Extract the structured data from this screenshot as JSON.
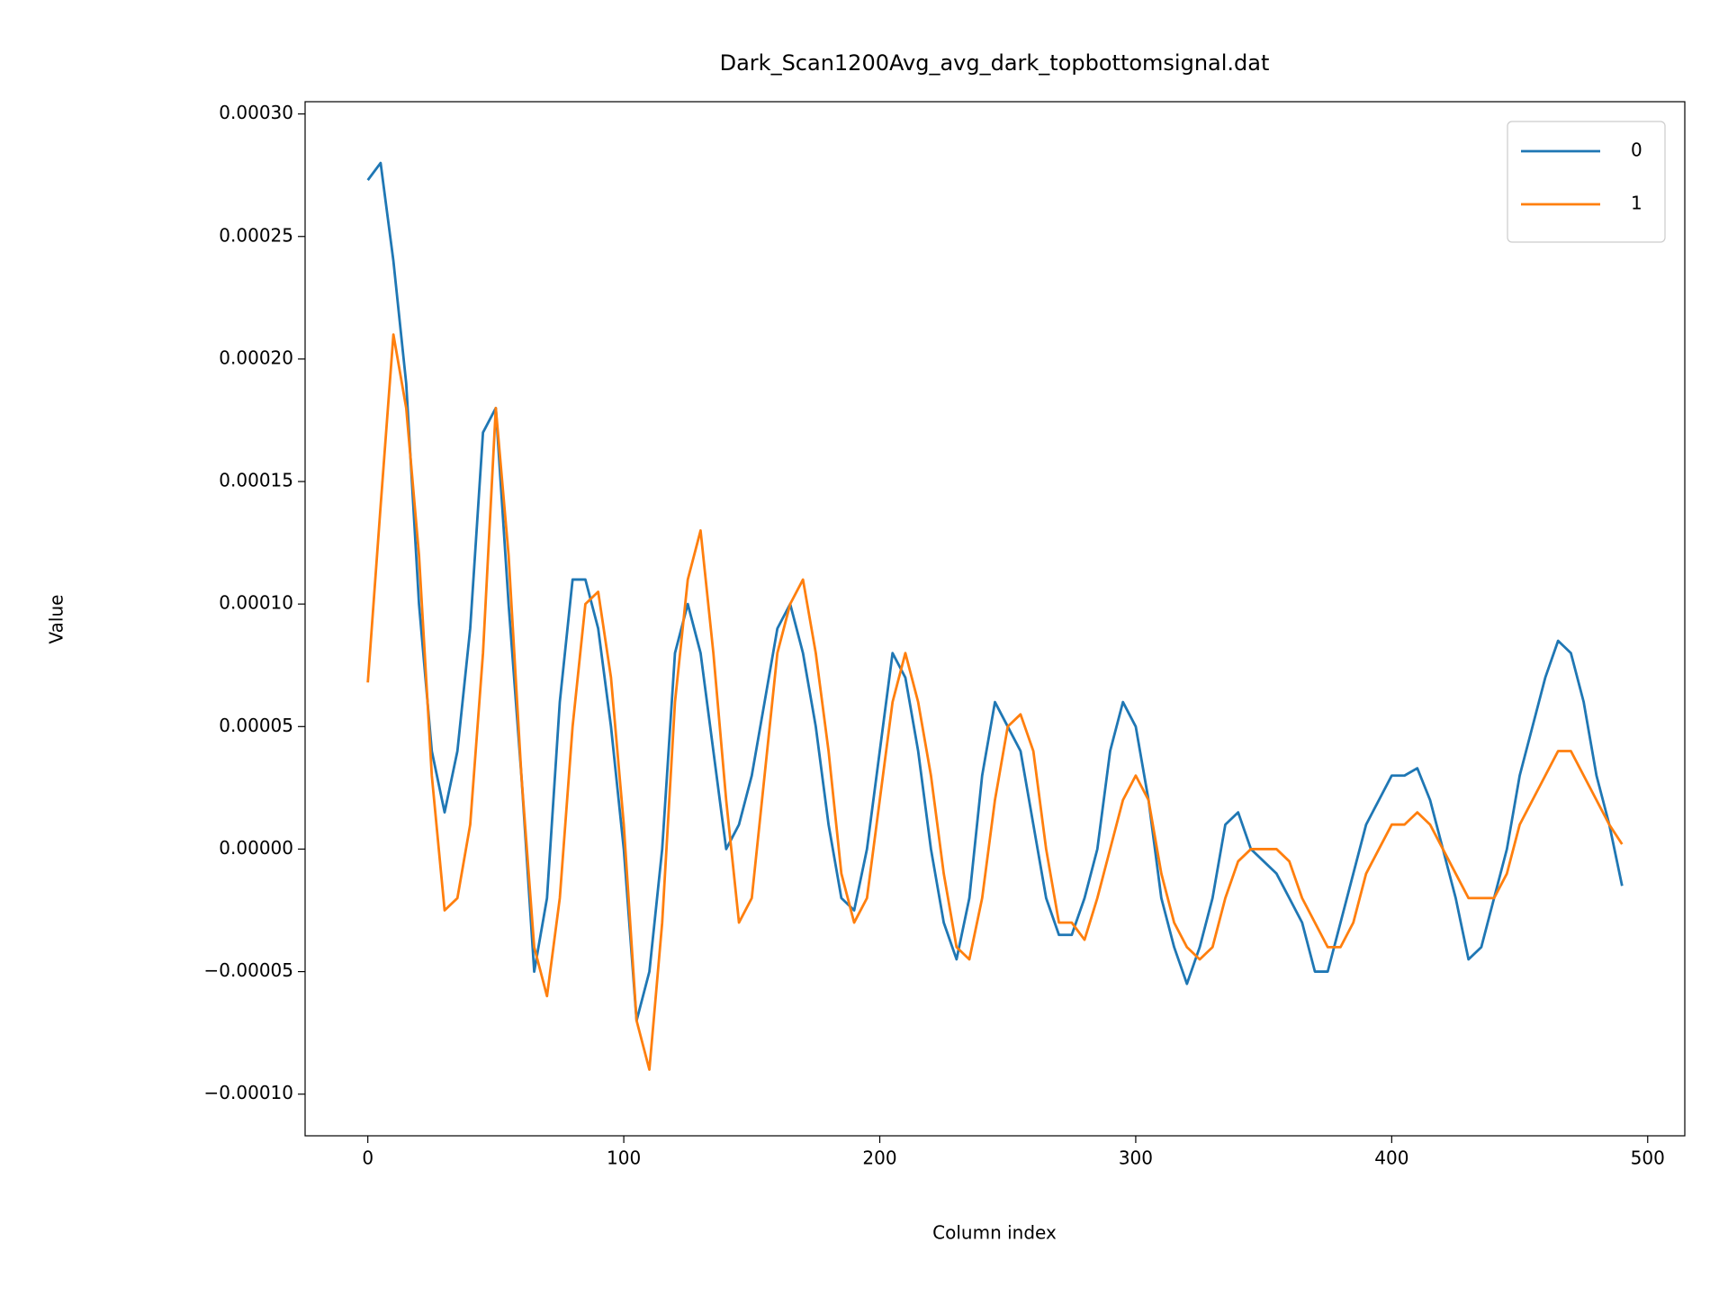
{
  "chart_data": {
    "type": "line",
    "title": "Dark_Scan1200Avg_avg_dark_topbottomsignal.dat",
    "xlabel": "Column index",
    "ylabel": "Value",
    "x": [
      0,
      5,
      10,
      15,
      20,
      25,
      30,
      35,
      40,
      45,
      50,
      55,
      60,
      65,
      70,
      75,
      80,
      85,
      90,
      95,
      100,
      105,
      110,
      115,
      120,
      125,
      130,
      135,
      140,
      145,
      150,
      155,
      160,
      165,
      170,
      175,
      180,
      185,
      190,
      195,
      200,
      205,
      210,
      215,
      220,
      225,
      230,
      235,
      240,
      245,
      250,
      255,
      260,
      265,
      270,
      275,
      280,
      285,
      290,
      295,
      300,
      305,
      310,
      315,
      320,
      325,
      330,
      335,
      340,
      345,
      350,
      355,
      360,
      365,
      370,
      375,
      380,
      385,
      390,
      395,
      400,
      405,
      410,
      415,
      420,
      425,
      430,
      435,
      440,
      445,
      450,
      455,
      460,
      465,
      470,
      475,
      480,
      485,
      490
    ],
    "series": [
      {
        "name": "0",
        "color": "#1f77b4",
        "values": [
          0.000273,
          0.00028,
          0.00024,
          0.00019,
          0.0001,
          4e-05,
          1.5e-05,
          4e-05,
          9e-05,
          0.00017,
          0.00018,
          0.0001,
          3e-05,
          -5e-05,
          -2e-05,
          6e-05,
          0.00011,
          0.00011,
          9e-05,
          5e-05,
          0,
          -7e-05,
          -5e-05,
          0,
          8e-05,
          0.0001,
          8e-05,
          4e-05,
          0,
          1e-05,
          3e-05,
          6e-05,
          9e-05,
          0.0001,
          8e-05,
          5e-05,
          1e-05,
          -2e-05,
          -2.5e-05,
          0,
          4e-05,
          8e-05,
          7e-05,
          4e-05,
          0,
          -3e-05,
          -4.5e-05,
          -2e-05,
          3e-05,
          6e-05,
          5e-05,
          4e-05,
          1e-05,
          -2e-05,
          -3.5e-05,
          -3.5e-05,
          -2e-05,
          0,
          4e-05,
          6e-05,
          5e-05,
          2e-05,
          -2e-05,
          -4e-05,
          -5.5e-05,
          -4e-05,
          -2e-05,
          1e-05,
          1.5e-05,
          0,
          -5e-06,
          -1e-05,
          -2e-05,
          -3e-05,
          -5e-05,
          -5e-05,
          -3e-05,
          -1e-05,
          1e-05,
          2e-05,
          3e-05,
          3e-05,
          3.3e-05,
          2e-05,
          0,
          -2e-05,
          -4.5e-05,
          -4e-05,
          -2e-05,
          0,
          3e-05,
          5e-05,
          7e-05,
          8.5e-05,
          8e-05,
          6e-05,
          3e-05,
          1e-05,
          -1.5e-05
        ]
      },
      {
        "name": "1",
        "color": "#ff7f0e",
        "values": [
          6.8e-05,
          0.00014,
          0.00021,
          0.00018,
          0.00012,
          3e-05,
          -2.5e-05,
          -2e-05,
          1e-05,
          8e-05,
          0.00018,
          0.00012,
          3e-05,
          -4e-05,
          -6e-05,
          -2e-05,
          5e-05,
          0.0001,
          0.000105,
          7e-05,
          1e-05,
          -7e-05,
          -9e-05,
          -3e-05,
          6e-05,
          0.00011,
          0.00013,
          8e-05,
          2e-05,
          -3e-05,
          -2e-05,
          3e-05,
          8e-05,
          0.0001,
          0.00011,
          8e-05,
          4e-05,
          -1e-05,
          -3e-05,
          -2e-05,
          2e-05,
          6e-05,
          8e-05,
          6e-05,
          3e-05,
          -1e-05,
          -4e-05,
          -4.5e-05,
          -2e-05,
          2e-05,
          5e-05,
          5.5e-05,
          4e-05,
          0,
          -3e-05,
          -3e-05,
          -3.7e-05,
          -2e-05,
          0,
          2e-05,
          3e-05,
          2e-05,
          -1e-05,
          -3e-05,
          -4e-05,
          -4.5e-05,
          -4e-05,
          -2e-05,
          -5e-06,
          0,
          0,
          0,
          -5e-06,
          -2e-05,
          -3e-05,
          -4e-05,
          -4e-05,
          -3e-05,
          -1e-05,
          0,
          1e-05,
          1e-05,
          1.5e-05,
          1e-05,
          0,
          -1e-05,
          -2e-05,
          -2e-05,
          -2e-05,
          -1e-05,
          1e-05,
          2e-05,
          3e-05,
          4e-05,
          4e-05,
          3e-05,
          2e-05,
          1e-05,
          2e-06
        ]
      }
    ],
    "xlim": [
      -24.5,
      514.5
    ],
    "ylim": [
      -0.000117,
      0.000305
    ],
    "xticks": [
      0,
      100,
      200,
      300,
      400,
      500
    ],
    "yticks": [
      {
        "value": -0.0001,
        "label": "−0.00010"
      },
      {
        "value": -5e-05,
        "label": "−0.00005"
      },
      {
        "value": 0,
        "label": "0.00000"
      },
      {
        "value": 5e-05,
        "label": "0.00005"
      },
      {
        "value": 0.0001,
        "label": "0.00010"
      },
      {
        "value": 0.00015,
        "label": "0.00015"
      },
      {
        "value": 0.0002,
        "label": "0.00020"
      },
      {
        "value": 0.00025,
        "label": "0.00025"
      },
      {
        "value": 0.0003,
        "label": "0.00030"
      }
    ],
    "legend": "upper right",
    "grid": false
  }
}
